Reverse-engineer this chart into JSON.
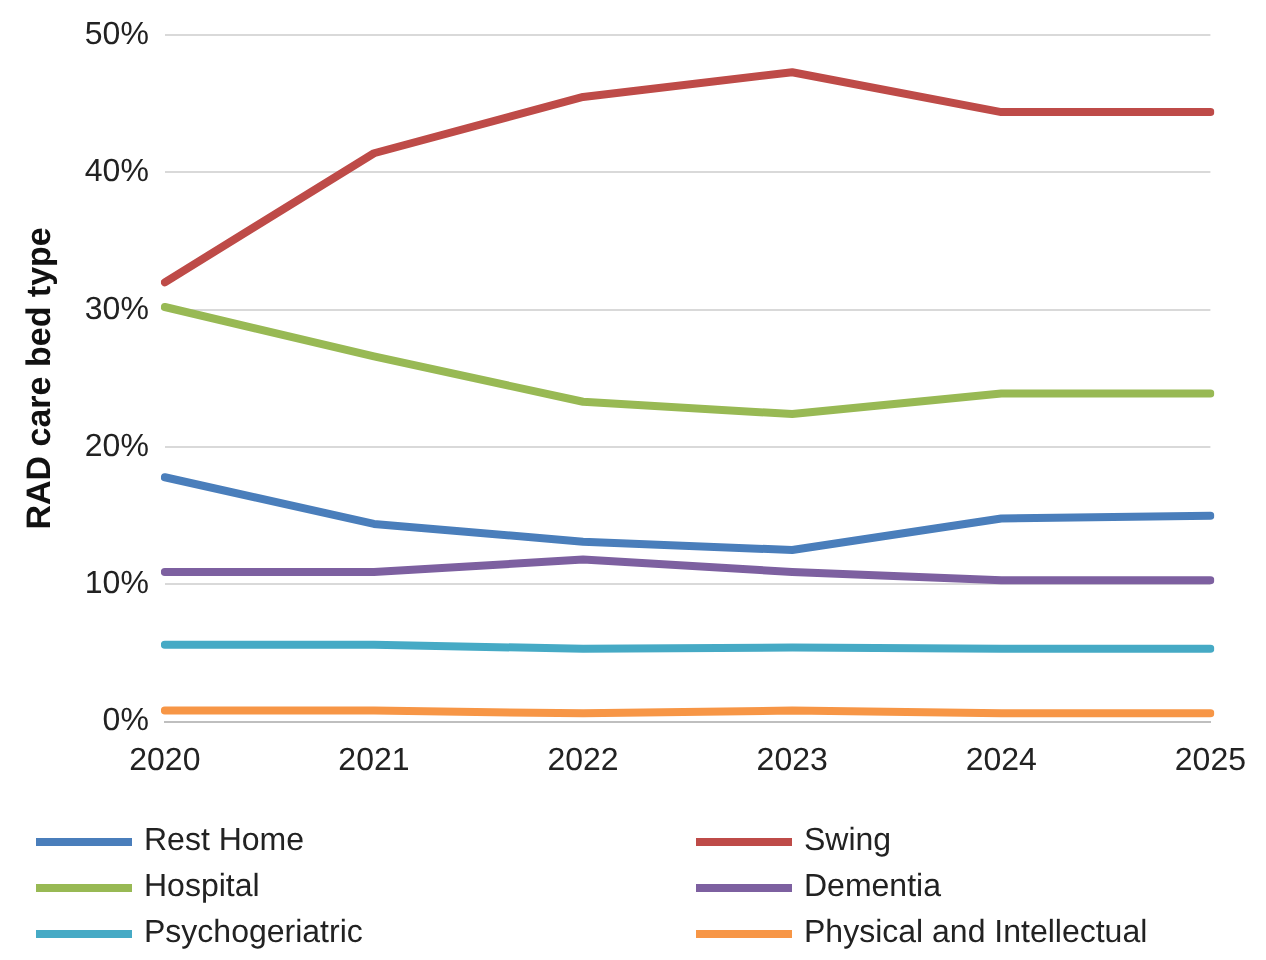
{
  "chart_data": {
    "type": "line",
    "ylabel": "RAD care bed type",
    "categories": [
      "2020",
      "2021",
      "2022",
      "2023",
      "2024",
      "2025"
    ],
    "series": [
      {
        "name": "Rest Home",
        "color": "#4a7ebb",
        "values": [
          17.8,
          14.4,
          13.1,
          12.5,
          14.8,
          15.0
        ]
      },
      {
        "name": "Swing",
        "color": "#be4b48",
        "values": [
          32.0,
          41.4,
          45.5,
          47.3,
          44.4,
          44.4
        ]
      },
      {
        "name": "Hospital",
        "color": "#98b954",
        "values": [
          30.2,
          26.6,
          23.3,
          22.4,
          23.9,
          23.9
        ]
      },
      {
        "name": "Dementia",
        "color": "#7d60a0",
        "values": [
          10.9,
          10.9,
          11.8,
          10.9,
          10.3,
          10.3
        ]
      },
      {
        "name": "Psychogeriatric",
        "color": "#46aac5",
        "values": [
          5.6,
          5.6,
          5.3,
          5.4,
          5.3,
          5.3
        ]
      },
      {
        "name": "Physical and Intellectual",
        "color": "#f79646",
        "values": [
          0.8,
          0.8,
          0.6,
          0.8,
          0.6,
          0.6
        ]
      }
    ],
    "ylim": [
      0,
      50
    ],
    "yticks": [
      {
        "value": 0,
        "label": "0%"
      },
      {
        "value": 10,
        "label": "10%"
      },
      {
        "value": 20,
        "label": "20%"
      },
      {
        "value": 30,
        "label": "30%"
      },
      {
        "value": 40,
        "label": "40%"
      },
      {
        "value": 50,
        "label": "50%"
      }
    ],
    "grid": "y",
    "legend": "bottom",
    "marker": "none",
    "line_style": "solid"
  }
}
